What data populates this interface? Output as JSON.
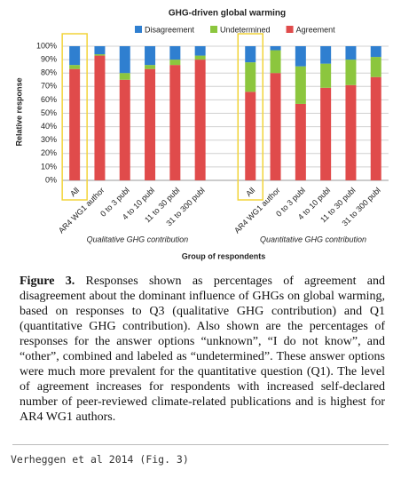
{
  "chart_data": {
    "type": "bar",
    "stacked": true,
    "title": "GHG-driven global warming",
    "y_label": "Relative response",
    "x_label": "Group of respondents",
    "groups": [
      "Qualitative GHG contribution",
      "Quantitative GHG contribution"
    ],
    "categories": [
      "All",
      "AR4 WG1 author",
      "0 to 3 publ",
      "4 to 10 publ",
      "11 to 30 publ",
      "31 to 300 publ",
      "All",
      "AR4 WG1 author",
      "0 to 3 publ",
      "4 to 10 publ",
      "11 to 30 publ",
      "31 to 300 publ"
    ],
    "series": [
      {
        "name": "Agreement",
        "color": "#e04b4b",
        "values": [
          83,
          93,
          75,
          83,
          86,
          90,
          66,
          80,
          57,
          69,
          71,
          77
        ]
      },
      {
        "name": "Undetermined",
        "color": "#8cc63e",
        "values": [
          3,
          1,
          5,
          3,
          4,
          3,
          22,
          17,
          28,
          18,
          19,
          15
        ]
      },
      {
        "name": "Disagreement",
        "color": "#2f7fd0",
        "values": [
          14,
          6,
          20,
          14,
          10,
          7,
          12,
          3,
          15,
          13,
          10,
          8
        ]
      }
    ],
    "legend_order": [
      2,
      1,
      0
    ],
    "highlight": "All",
    "ylim": [
      0,
      100
    ],
    "yticks": [
      {
        "value": 0,
        "label": "0%"
      },
      {
        "value": 10,
        "label": "10%"
      },
      {
        "value": 20,
        "label": "20%"
      },
      {
        "value": 30,
        "label": "30%"
      },
      {
        "value": 40,
        "label": "40%"
      },
      {
        "value": 50,
        "label": "50%"
      },
      {
        "value": 60,
        "label": "60%"
      },
      {
        "value": 70,
        "label": "70%"
      },
      {
        "value": 80,
        "label": "80%"
      },
      {
        "value": 90,
        "label": "90%"
      },
      {
        "value": 100,
        "label": "100%"
      }
    ],
    "grid": true
  },
  "caption": {
    "label": "Figure 3.",
    "text": "Responses shown as percentages of agreement and disagreement about the dominant influence of GHGs on global warming, based on responses to Q3 (qualitative GHG contribution) and Q1 (quantitative GHG contribution). Also shown are the percentages of responses for the answer options “unknown”, “I do not know”, and “other”, combined and labeled as “undetermined”. These answer options were much more prevalent for the quantitative question (Q1). The level of agreement increases for respondents with increased self-declared number of peer-reviewed climate-related publications and is highest for AR4 WG1 authors."
  },
  "source": "Verheggen et al 2014 (Fig. 3)"
}
